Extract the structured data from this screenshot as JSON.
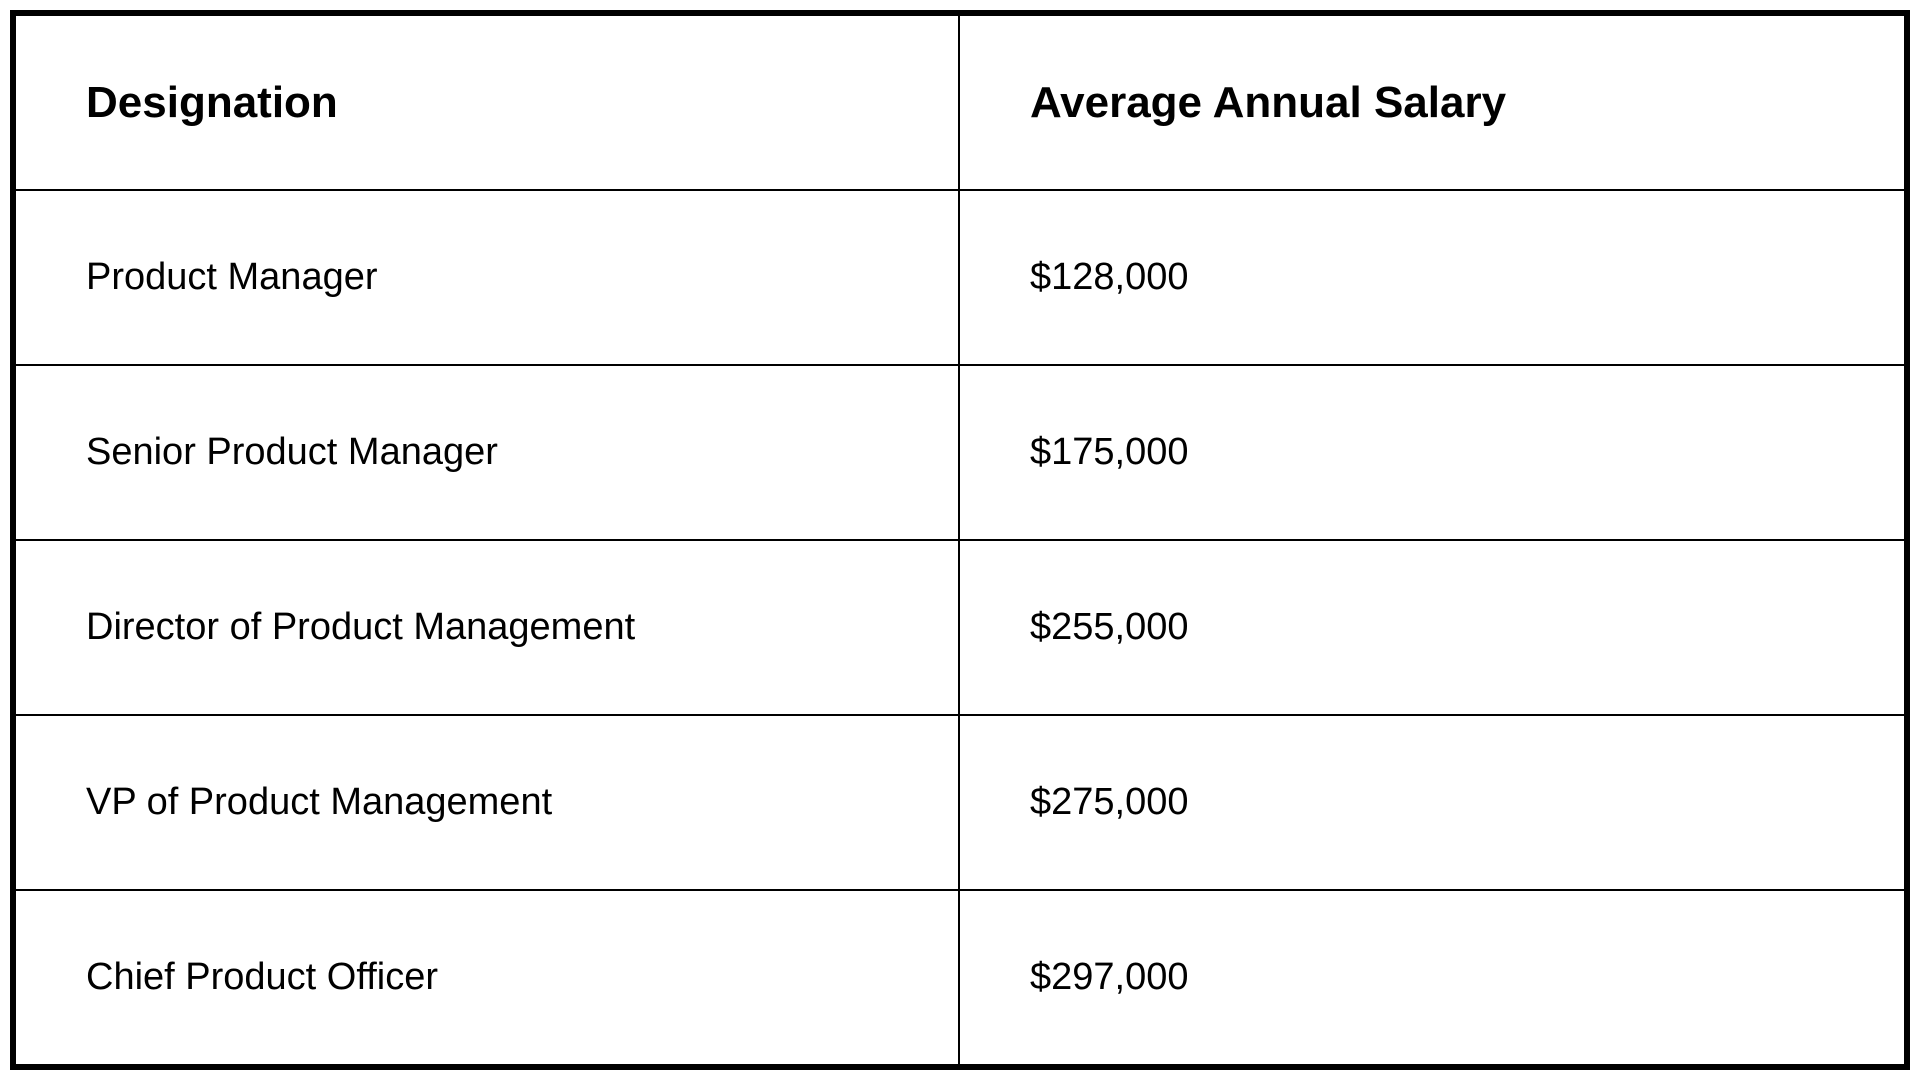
{
  "table": {
    "type": "table",
    "background_color": "#ffffff",
    "border_color": "#000000",
    "outer_border_width": 6,
    "inner_border_width": 2,
    "text_color": "#000000",
    "header_fontsize": 44,
    "header_fontweight": 600,
    "body_fontsize": 38,
    "body_fontweight": 400,
    "column_widths": [
      "50%",
      "50%"
    ],
    "cell_padding_left": 70,
    "columns": [
      "Designation",
      "Average Annual Salary"
    ],
    "rows": [
      {
        "designation": "Product Manager",
        "salary": "$128,000"
      },
      {
        "designation": "Senior Product Manager",
        "salary": "$175,000"
      },
      {
        "designation": "Director of Product Management",
        "salary": "$255,000"
      },
      {
        "designation": "VP of Product Management",
        "salary": "$275,000"
      },
      {
        "designation": "Chief Product Officer",
        "salary": "$297,000"
      }
    ]
  }
}
